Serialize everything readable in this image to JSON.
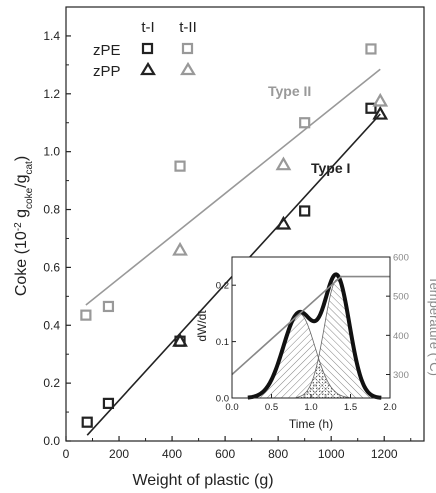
{
  "chart_data": [
    {
      "type": "scatter",
      "title": "",
      "xlabel": "Weight of plastic (g)",
      "ylabel": {
        "pre": "Coke (10",
        "exp": "-2",
        "mid": " g",
        "sub1": "coke",
        "slash": "/g",
        "sub2": "cat",
        "post": ")"
      },
      "xlim": [
        0,
        1350
      ],
      "ylim": [
        0,
        1.5
      ],
      "x_ticks": [
        0,
        200,
        400,
        600,
        800,
        1000,
        1200
      ],
      "y_ticks": [
        0.0,
        0.2,
        0.4,
        0.6,
        0.8,
        1.0,
        1.2,
        1.4
      ],
      "x_tick_labels": [
        "0",
        "200",
        "400",
        "600",
        "800",
        "1000",
        "1200"
      ],
      "y_tick_labels": [
        "0.0",
        "0.2",
        "0.4",
        "0.6",
        "0.8",
        "1.0",
        "1.2",
        "1.4"
      ],
      "legend": {
        "placement": "top-left",
        "col_headers": [
          "t-I",
          "t-II"
        ],
        "row_labels": [
          "zPE",
          "zPP"
        ]
      },
      "series": [
        {
          "name": "zPE t-I",
          "marker": "square",
          "color": "#222222",
          "x": [
            80,
            160,
            430,
            900,
            1150
          ],
          "y": [
            0.065,
            0.13,
            0.345,
            0.795,
            1.15
          ]
        },
        {
          "name": "zPP t-I",
          "marker": "triangle",
          "color": "#222222",
          "x": [
            430,
            820,
            1185
          ],
          "y": [
            0.345,
            0.75,
            1.13
          ]
        },
        {
          "name": "zPE t-II",
          "marker": "square",
          "color": "#999999",
          "x": [
            75,
            160,
            430,
            900,
            1150
          ],
          "y": [
            0.435,
            0.465,
            0.95,
            1.1,
            1.355
          ]
        },
        {
          "name": "zPP t-II",
          "marker": "triangle",
          "color": "#999999",
          "x": [
            430,
            820,
            1185
          ],
          "y": [
            0.66,
            0.955,
            1.175
          ]
        }
      ],
      "fit_lines": [
        {
          "label": "Type I",
          "color": "#222222",
          "x": [
            80,
            1185
          ],
          "y": [
            0.02,
            1.13
          ]
        },
        {
          "label": "Type II",
          "color": "#999999",
          "x": [
            75,
            1185
          ],
          "y": [
            0.47,
            1.285
          ]
        }
      ],
      "colors": {
        "type_i": "#222222",
        "type_ii": "#999999"
      }
    },
    {
      "type": "line",
      "title": "",
      "xlabel": "Time (h)",
      "ylabel": "dW/dt",
      "ylabel_right": "Temperature (°C)",
      "xlim": [
        0,
        2.0
      ],
      "ylim": [
        0,
        0.25
      ],
      "ylim_right": [
        240,
        600
      ],
      "x_ticks": [
        0.0,
        0.5,
        1.0,
        1.5,
        2.0
      ],
      "y_ticks": [
        0.0,
        0.1,
        0.2
      ],
      "y_ticks_right": [
        300,
        400,
        500,
        600
      ],
      "x_tick_labels": [
        "0.0",
        "0.5",
        "1.0",
        "1.5",
        "2.0"
      ],
      "y_tick_labels": [
        "0.0",
        "0.1",
        "0.2"
      ],
      "y_tick_labels_right": [
        "300",
        "400",
        "500",
        "600"
      ],
      "peaks": [
        {
          "mu": 0.85,
          "sigma": 0.2,
          "amp": 0.15
        },
        {
          "mu": 1.33,
          "sigma": 0.16,
          "amp": 0.21
        }
      ],
      "temperature": {
        "x": [
          0.0,
          1.38,
          2.0
        ],
        "y": [
          300,
          550,
          550
        ]
      }
    }
  ]
}
